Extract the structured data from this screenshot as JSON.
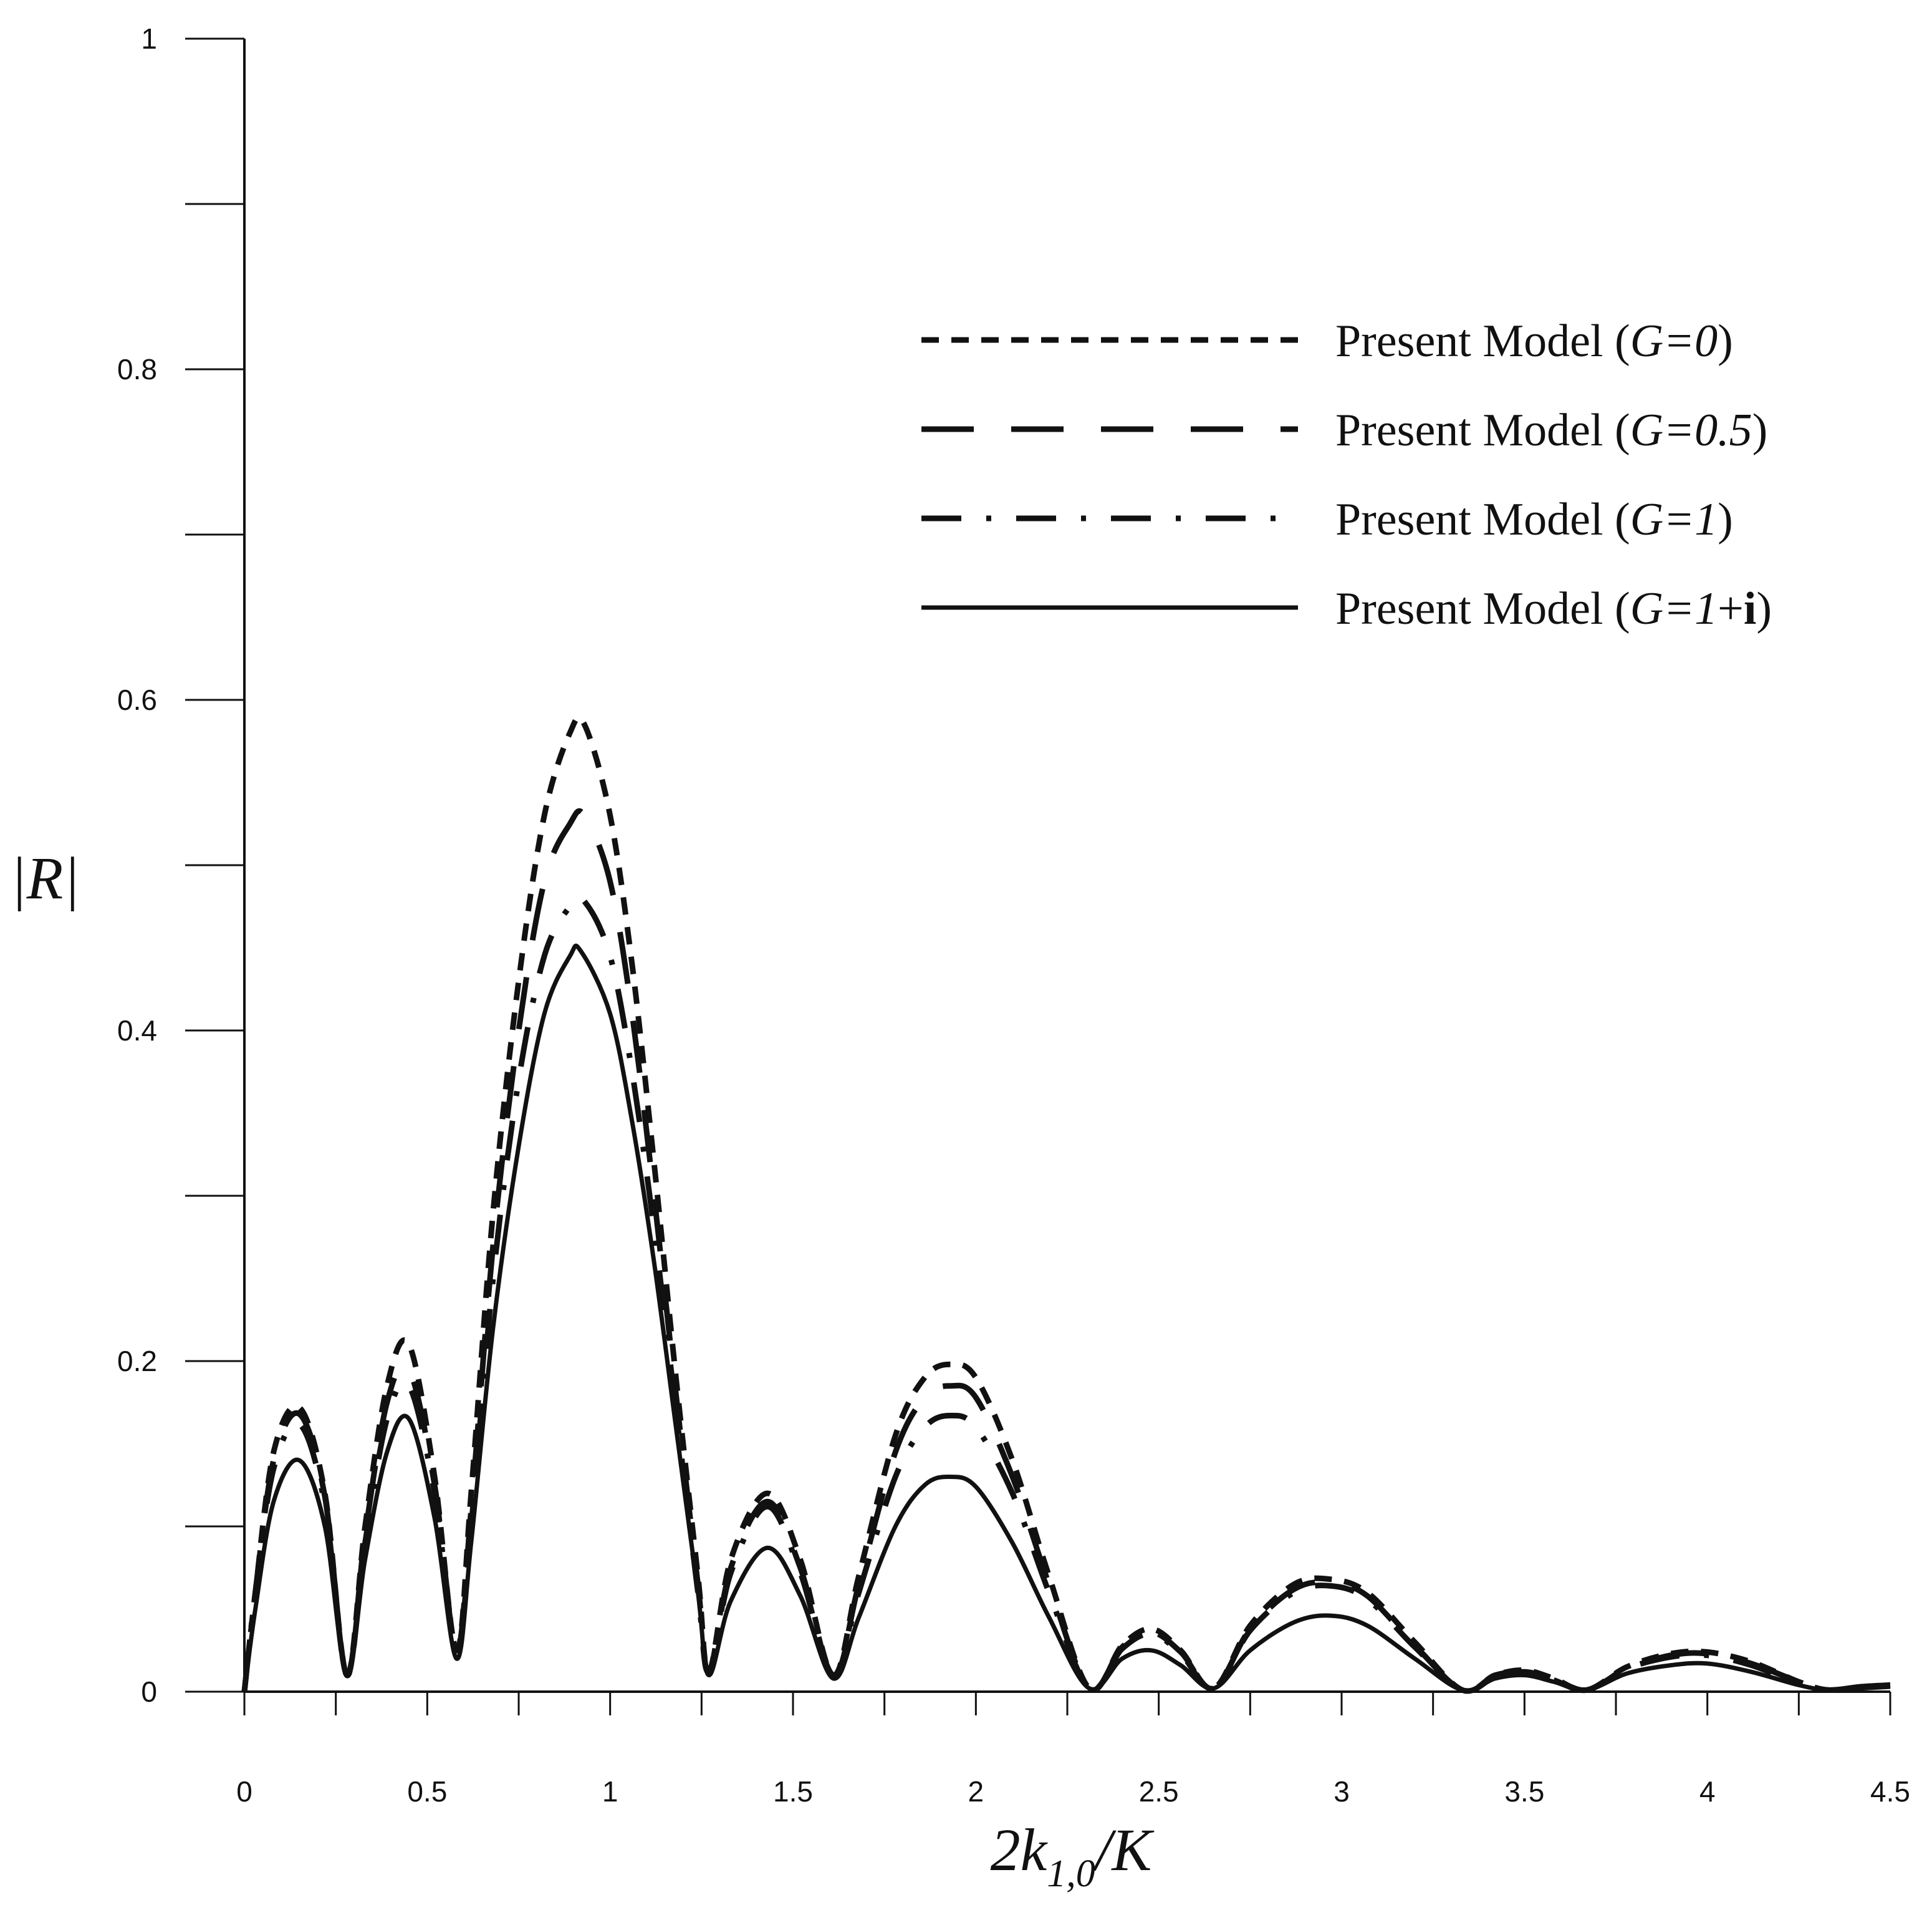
{
  "chart_data": {
    "type": "line",
    "xlabel": {
      "main": "2k",
      "sub": "1,0",
      "tail": "/K"
    },
    "ylabel": "|R|",
    "xlim": [
      0,
      4.5
    ],
    "ylim": [
      0,
      1
    ],
    "x_ticks": [
      0,
      0.5,
      1,
      1.5,
      2,
      2.5,
      3,
      3.5,
      4,
      4.5
    ],
    "x_tick_labels": [
      "0",
      "0.5",
      "1",
      "1.5",
      "2",
      "2.5",
      "3",
      "3.5",
      "4",
      "4.5"
    ],
    "y_ticks": [
      0,
      0.2,
      0.4,
      0.6,
      0.8,
      1
    ],
    "y_tick_labels": [
      "0",
      "0.2",
      "0.4",
      "0.6",
      "0.8",
      "1"
    ],
    "grid": false,
    "legend_position": "top-right",
    "series": [
      {
        "name": "Present Model (G=0)",
        "legend_prefix": "Present Model (",
        "legend_var": "G=",
        "legend_value": "0",
        "legend_bold": "",
        "legend_suffix": ")",
        "style": "short-dash",
        "points": [
          [
            0,
            0
          ],
          [
            0.03,
            0.06
          ],
          [
            0.08,
            0.145
          ],
          [
            0.15,
            0.172
          ],
          [
            0.22,
            0.12
          ],
          [
            0.28,
            0.01
          ],
          [
            0.33,
            0.1
          ],
          [
            0.39,
            0.185
          ],
          [
            0.45,
            0.21
          ],
          [
            0.52,
            0.13
          ],
          [
            0.58,
            0.025
          ],
          [
            0.62,
            0.12
          ],
          [
            0.68,
            0.29
          ],
          [
            0.75,
            0.43
          ],
          [
            0.82,
            0.53
          ],
          [
            0.89,
            0.58
          ],
          [
            0.93,
            0.585
          ],
          [
            1.0,
            0.53
          ],
          [
            1.06,
            0.44
          ],
          [
            1.12,
            0.32
          ],
          [
            1.18,
            0.19
          ],
          [
            1.24,
            0.07
          ],
          [
            1.27,
            0.012
          ],
          [
            1.33,
            0.08
          ],
          [
            1.43,
            0.12
          ],
          [
            1.52,
            0.08
          ],
          [
            1.61,
            0.01
          ],
          [
            1.68,
            0.07
          ],
          [
            1.78,
            0.155
          ],
          [
            1.86,
            0.19
          ],
          [
            1.93,
            0.198
          ],
          [
            2.0,
            0.19
          ],
          [
            2.1,
            0.14
          ],
          [
            2.2,
            0.07
          ],
          [
            2.31,
            0.002
          ],
          [
            2.4,
            0.028
          ],
          [
            2.48,
            0.038
          ],
          [
            2.56,
            0.025
          ],
          [
            2.65,
            0.002
          ],
          [
            2.75,
            0.04
          ],
          [
            2.87,
            0.065
          ],
          [
            2.97,
            0.068
          ],
          [
            3.07,
            0.06
          ],
          [
            3.2,
            0.03
          ],
          [
            3.33,
            0.001
          ],
          [
            3.42,
            0.01
          ],
          [
            3.5,
            0.013
          ],
          [
            3.58,
            0.008
          ],
          [
            3.67,
            0.001
          ],
          [
            3.78,
            0.015
          ],
          [
            3.9,
            0.023
          ],
          [
            4.0,
            0.024
          ],
          [
            4.12,
            0.018
          ],
          [
            4.25,
            0.006
          ],
          [
            4.33,
            0.001
          ],
          [
            4.42,
            0.003
          ],
          [
            4.5,
            0.004
          ]
        ]
      },
      {
        "name": "Present Model (G=0.5)",
        "legend_prefix": "Present Model (",
        "legend_var": "G=",
        "legend_value": "0.5",
        "legend_bold": "",
        "legend_suffix": ")",
        "style": "long-dash",
        "points": [
          [
            0,
            0
          ],
          [
            0.03,
            0.06
          ],
          [
            0.08,
            0.14
          ],
          [
            0.15,
            0.168
          ],
          [
            0.22,
            0.118
          ],
          [
            0.28,
            0.01
          ],
          [
            0.33,
            0.095
          ],
          [
            0.39,
            0.175
          ],
          [
            0.45,
            0.195
          ],
          [
            0.52,
            0.125
          ],
          [
            0.58,
            0.025
          ],
          [
            0.62,
            0.11
          ],
          [
            0.68,
            0.27
          ],
          [
            0.75,
            0.4
          ],
          [
            0.82,
            0.49
          ],
          [
            0.89,
            0.525
          ],
          [
            0.93,
            0.53
          ],
          [
            1.0,
            0.49
          ],
          [
            1.06,
            0.41
          ],
          [
            1.12,
            0.3
          ],
          [
            1.18,
            0.18
          ],
          [
            1.24,
            0.065
          ],
          [
            1.27,
            0.012
          ],
          [
            1.33,
            0.075
          ],
          [
            1.43,
            0.115
          ],
          [
            1.52,
            0.075
          ],
          [
            1.61,
            0.01
          ],
          [
            1.68,
            0.065
          ],
          [
            1.78,
            0.145
          ],
          [
            1.86,
            0.178
          ],
          [
            1.93,
            0.185
          ],
          [
            2.0,
            0.178
          ],
          [
            2.1,
            0.13
          ],
          [
            2.2,
            0.065
          ],
          [
            2.31,
            0.002
          ],
          [
            2.4,
            0.027
          ],
          [
            2.48,
            0.036
          ],
          [
            2.56,
            0.024
          ],
          [
            2.65,
            0.002
          ],
          [
            2.75,
            0.038
          ],
          [
            2.87,
            0.062
          ],
          [
            2.97,
            0.066
          ],
          [
            3.07,
            0.058
          ],
          [
            3.2,
            0.028
          ],
          [
            3.33,
            0.001
          ],
          [
            3.42,
            0.01
          ],
          [
            3.5,
            0.012
          ],
          [
            3.58,
            0.008
          ],
          [
            3.67,
            0.001
          ],
          [
            3.78,
            0.014
          ],
          [
            3.9,
            0.022
          ],
          [
            4.0,
            0.023
          ],
          [
            4.12,
            0.017
          ],
          [
            4.25,
            0.006
          ],
          [
            4.33,
            0.001
          ],
          [
            4.42,
            0.003
          ],
          [
            4.5,
            0.004
          ]
        ]
      },
      {
        "name": "Present Model (G=1)",
        "legend_prefix": "Present Model (",
        "legend_var": "G=",
        "legend_value": "1",
        "legend_bold": "",
        "legend_suffix": ")",
        "style": "dash-dot",
        "points": [
          [
            0,
            0
          ],
          [
            0.03,
            0.06
          ],
          [
            0.08,
            0.135
          ],
          [
            0.15,
            0.162
          ],
          [
            0.22,
            0.113
          ],
          [
            0.28,
            0.01
          ],
          [
            0.33,
            0.09
          ],
          [
            0.39,
            0.165
          ],
          [
            0.45,
            0.185
          ],
          [
            0.52,
            0.12
          ],
          [
            0.58,
            0.025
          ],
          [
            0.62,
            0.1
          ],
          [
            0.68,
            0.25
          ],
          [
            0.75,
            0.37
          ],
          [
            0.82,
            0.445
          ],
          [
            0.89,
            0.475
          ],
          [
            0.93,
            0.478
          ],
          [
            1.0,
            0.445
          ],
          [
            1.06,
            0.375
          ],
          [
            1.12,
            0.28
          ],
          [
            1.18,
            0.17
          ],
          [
            1.24,
            0.06
          ],
          [
            1.27,
            0.012
          ],
          [
            1.33,
            0.072
          ],
          [
            1.43,
            0.112
          ],
          [
            1.52,
            0.072
          ],
          [
            1.61,
            0.01
          ],
          [
            1.68,
            0.06
          ],
          [
            1.78,
            0.13
          ],
          [
            1.86,
            0.16
          ],
          [
            1.93,
            0.167
          ],
          [
            2.0,
            0.16
          ],
          [
            2.1,
            0.12
          ],
          [
            2.2,
            0.06
          ],
          [
            2.31,
            0.002
          ],
          [
            2.4,
            0.026
          ],
          [
            2.48,
            0.035
          ],
          [
            2.56,
            0.023
          ],
          [
            2.65,
            0.002
          ],
          [
            2.75,
            0.037
          ],
          [
            2.87,
            0.06
          ],
          [
            2.97,
            0.064
          ],
          [
            3.07,
            0.056
          ],
          [
            3.2,
            0.027
          ],
          [
            3.33,
            0.001
          ],
          [
            3.42,
            0.009
          ],
          [
            3.5,
            0.012
          ],
          [
            3.58,
            0.007
          ],
          [
            3.67,
            0.001
          ],
          [
            3.78,
            0.014
          ],
          [
            3.9,
            0.021
          ],
          [
            4.0,
            0.022
          ],
          [
            4.12,
            0.016
          ],
          [
            4.25,
            0.005
          ],
          [
            4.33,
            0.001
          ],
          [
            4.42,
            0.003
          ],
          [
            4.5,
            0.004
          ]
        ]
      },
      {
        "name": "Present Model (G=1+i)",
        "legend_prefix": "Present Model (",
        "legend_var": "G=",
        "legend_value": "1",
        "legend_bold": "i",
        "legend_suffix": ")",
        "style": "solid",
        "points": [
          [
            0,
            0
          ],
          [
            0.03,
            0.05
          ],
          [
            0.08,
            0.115
          ],
          [
            0.15,
            0.14
          ],
          [
            0.22,
            0.1
          ],
          [
            0.28,
            0.01
          ],
          [
            0.33,
            0.08
          ],
          [
            0.39,
            0.145
          ],
          [
            0.45,
            0.165
          ],
          [
            0.52,
            0.105
          ],
          [
            0.58,
            0.02
          ],
          [
            0.62,
            0.09
          ],
          [
            0.68,
            0.22
          ],
          [
            0.75,
            0.33
          ],
          [
            0.82,
            0.41
          ],
          [
            0.89,
            0.445
          ],
          [
            0.92,
            0.448
          ],
          [
            1.0,
            0.41
          ],
          [
            1.06,
            0.345
          ],
          [
            1.12,
            0.26
          ],
          [
            1.18,
            0.16
          ],
          [
            1.24,
            0.06
          ],
          [
            1.27,
            0.01
          ],
          [
            1.33,
            0.055
          ],
          [
            1.43,
            0.087
          ],
          [
            1.52,
            0.058
          ],
          [
            1.61,
            0.008
          ],
          [
            1.68,
            0.045
          ],
          [
            1.78,
            0.1
          ],
          [
            1.86,
            0.125
          ],
          [
            1.93,
            0.13
          ],
          [
            2.0,
            0.124
          ],
          [
            2.1,
            0.09
          ],
          [
            2.2,
            0.045
          ],
          [
            2.31,
            0.002
          ],
          [
            2.4,
            0.02
          ],
          [
            2.48,
            0.025
          ],
          [
            2.56,
            0.016
          ],
          [
            2.65,
            0.002
          ],
          [
            2.75,
            0.025
          ],
          [
            2.87,
            0.042
          ],
          [
            2.97,
            0.046
          ],
          [
            3.07,
            0.04
          ],
          [
            3.2,
            0.02
          ],
          [
            3.33,
            0.001
          ],
          [
            3.42,
            0.008
          ],
          [
            3.5,
            0.01
          ],
          [
            3.58,
            0.006
          ],
          [
            3.67,
            0.001
          ],
          [
            3.78,
            0.011
          ],
          [
            3.9,
            0.016
          ],
          [
            4.0,
            0.017
          ],
          [
            4.12,
            0.012
          ],
          [
            4.25,
            0.004
          ],
          [
            4.33,
            0.001
          ],
          [
            4.42,
            0.002
          ],
          [
            4.5,
            0.003
          ]
        ]
      }
    ]
  }
}
